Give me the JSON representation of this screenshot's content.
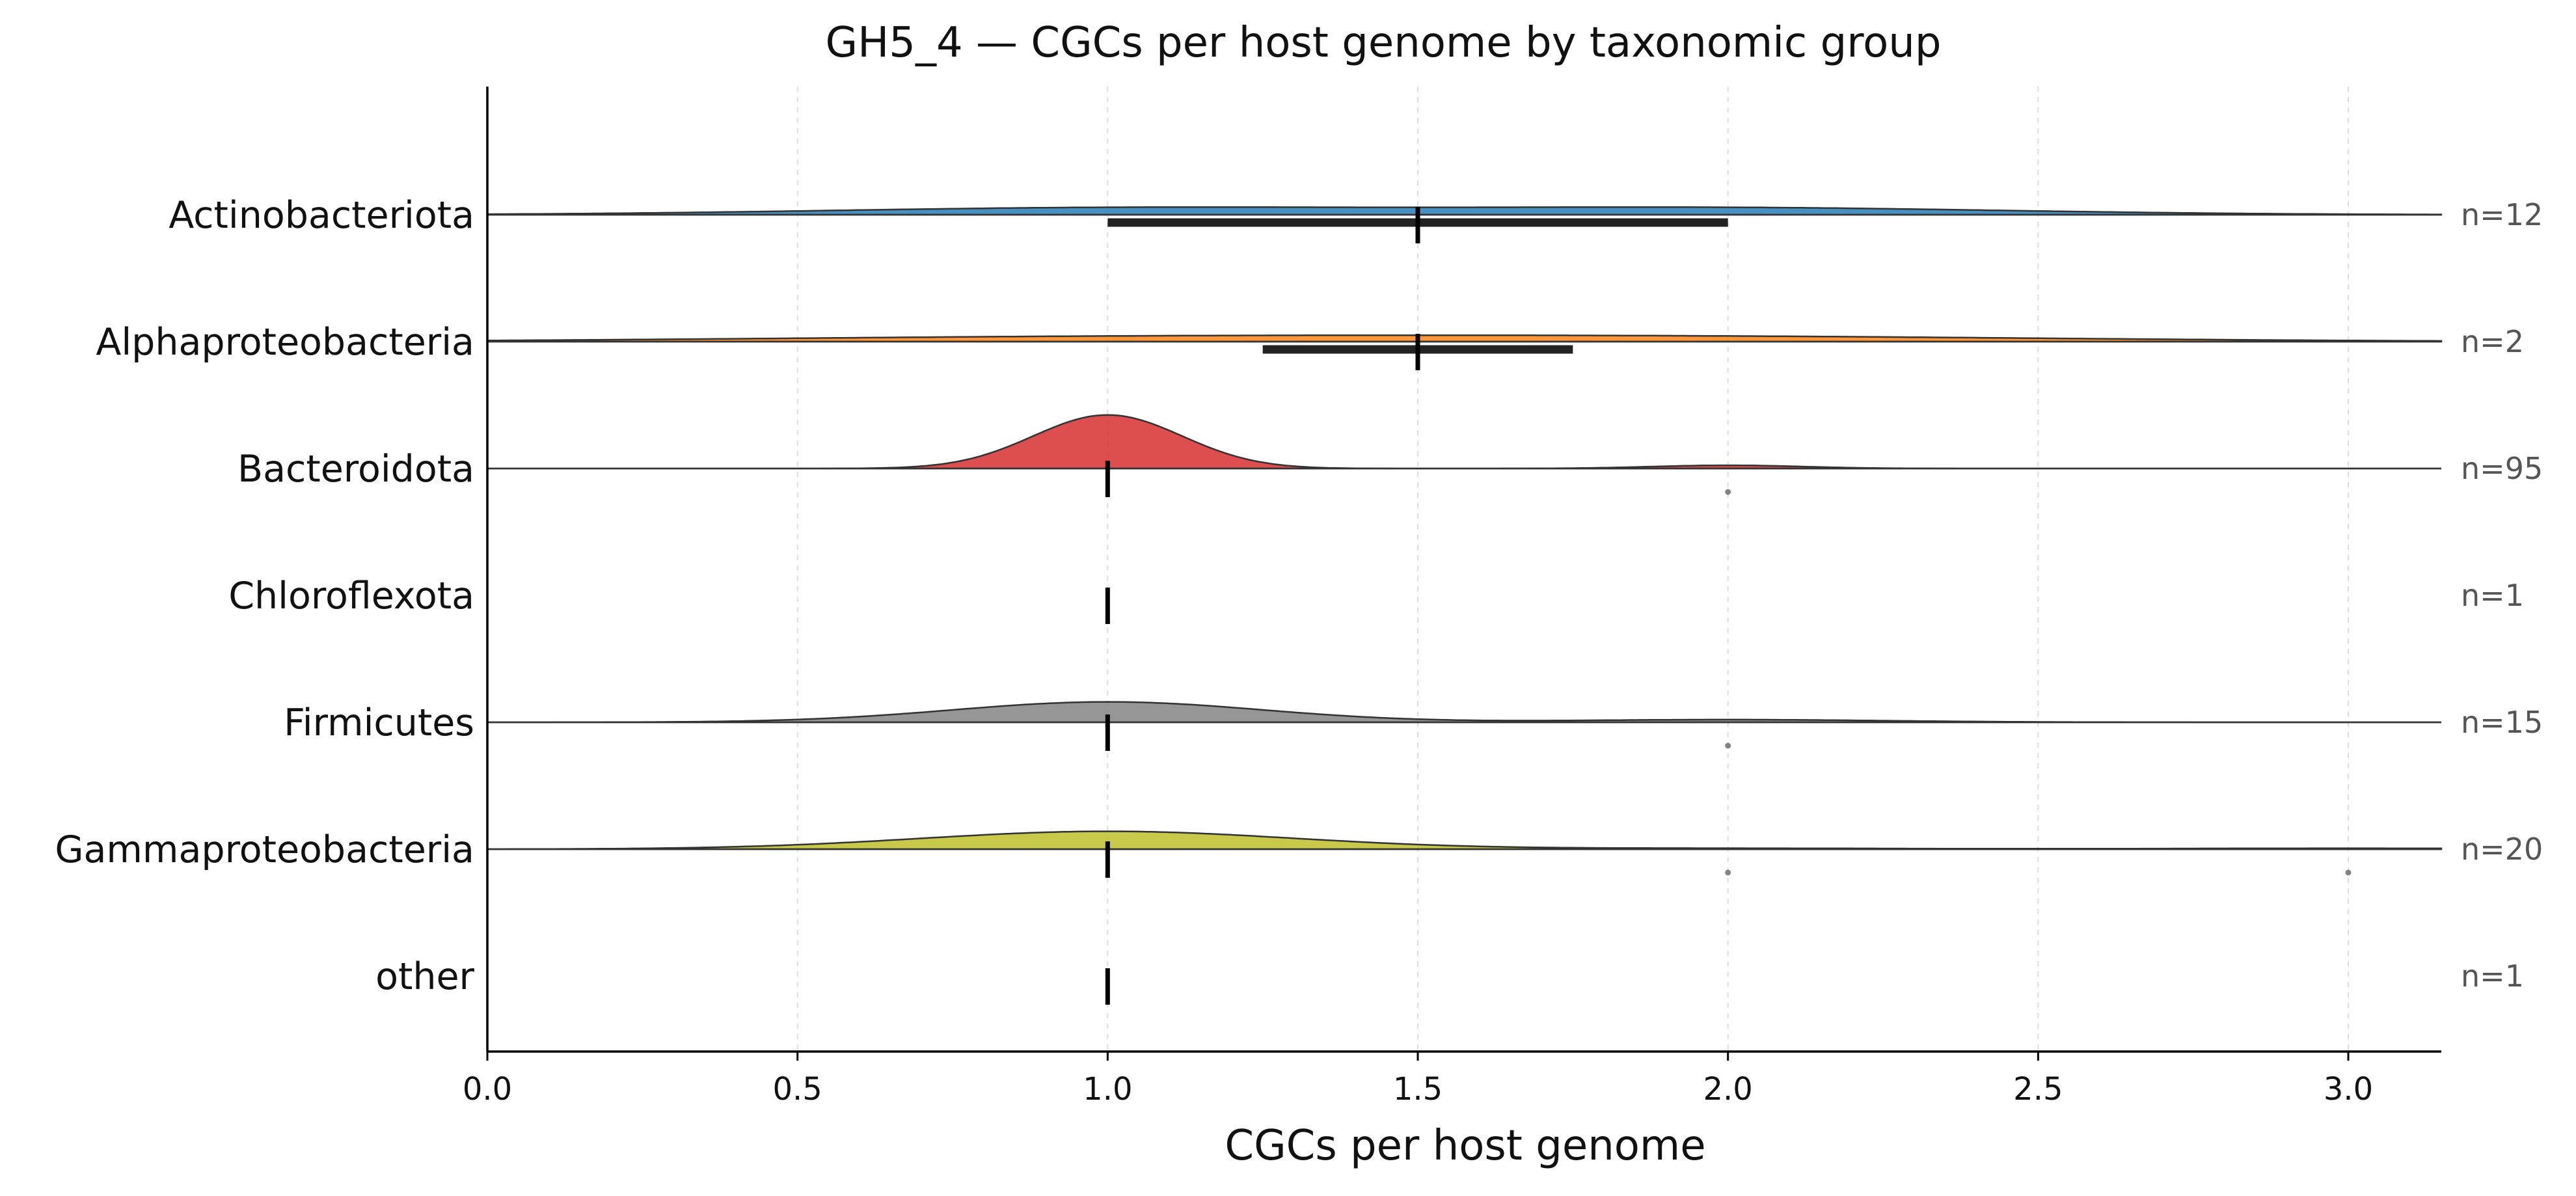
{
  "chart_data": {
    "type": "ridgeline",
    "title": "GH5_4 — CGCs per host genome by taxonomic group",
    "xlabel": "CGCs per host genome",
    "ylabel": "",
    "xlim": [
      0.0,
      3.15
    ],
    "xticks": [
      0.0,
      0.5,
      1.0,
      1.5,
      2.0,
      2.5,
      3.0
    ],
    "xtick_labels": [
      "0.0",
      "0.5",
      "1.0",
      "1.5",
      "2.0",
      "2.5",
      "3.0"
    ],
    "grid": "vertical dashed",
    "groups": [
      {
        "name": "Actinobacteriota",
        "n_label": "n=12",
        "color": "#1f77b4",
        "median": 1.5,
        "iqr": [
          1.0,
          2.0
        ],
        "outliers": [],
        "density": [
          {
            "mu": 1.0,
            "sigma": 0.45,
            "w": 0.5
          },
          {
            "mu": 2.0,
            "sigma": 0.45,
            "w": 0.5
          }
        ],
        "peak": 0.06
      },
      {
        "name": "Alphaproteobacteria",
        "n_label": "n=2",
        "color": "#ff7f0e",
        "median": 1.5,
        "iqr": [
          1.25,
          1.75
        ],
        "outliers": [],
        "density": [
          {
            "mu": 1.0,
            "sigma": 0.6,
            "w": 0.5
          },
          {
            "mu": 2.0,
            "sigma": 0.6,
            "w": 0.5
          }
        ],
        "peak": 0.05
      },
      {
        "name": "Bacteroidota",
        "n_label": "n=95",
        "color": "#d62728",
        "median": 1.0,
        "iqr": null,
        "outliers": [
          2.0
        ],
        "density": [
          {
            "mu": 1.0,
            "sigma": 0.12,
            "w": 1.0
          },
          {
            "mu": 2.0,
            "sigma": 0.12,
            "w": 0.06
          }
        ],
        "peak": 0.42
      },
      {
        "name": "Chloroflexota",
        "n_label": "n=1",
        "color": "#9467bd",
        "median": 1.0,
        "iqr": null,
        "outliers": [],
        "density": [],
        "peak": 0
      },
      {
        "name": "Firmicutes",
        "n_label": "n=15",
        "color": "#7f7f7f",
        "median": 1.0,
        "iqr": null,
        "outliers": [
          2.0
        ],
        "density": [
          {
            "mu": 1.0,
            "sigma": 0.25,
            "w": 1.0
          },
          {
            "mu": 2.0,
            "sigma": 0.25,
            "w": 0.13
          }
        ],
        "peak": 0.16
      },
      {
        "name": "Gammaproteobacteria",
        "n_label": "n=20",
        "color": "#bcbd22",
        "median": 1.0,
        "iqr": null,
        "outliers": [
          2.0,
          3.0
        ],
        "density": [
          {
            "mu": 1.0,
            "sigma": 0.3,
            "w": 1.0
          },
          {
            "mu": 2.0,
            "sigma": 0.3,
            "w": 0.05
          },
          {
            "mu": 3.0,
            "sigma": 0.3,
            "w": 0.05
          }
        ],
        "peak": 0.14
      },
      {
        "name": "other",
        "n_label": "n=1",
        "color": "#17becf",
        "median": 1.0,
        "iqr": null,
        "outliers": [],
        "density": [],
        "peak": 0
      }
    ]
  }
}
